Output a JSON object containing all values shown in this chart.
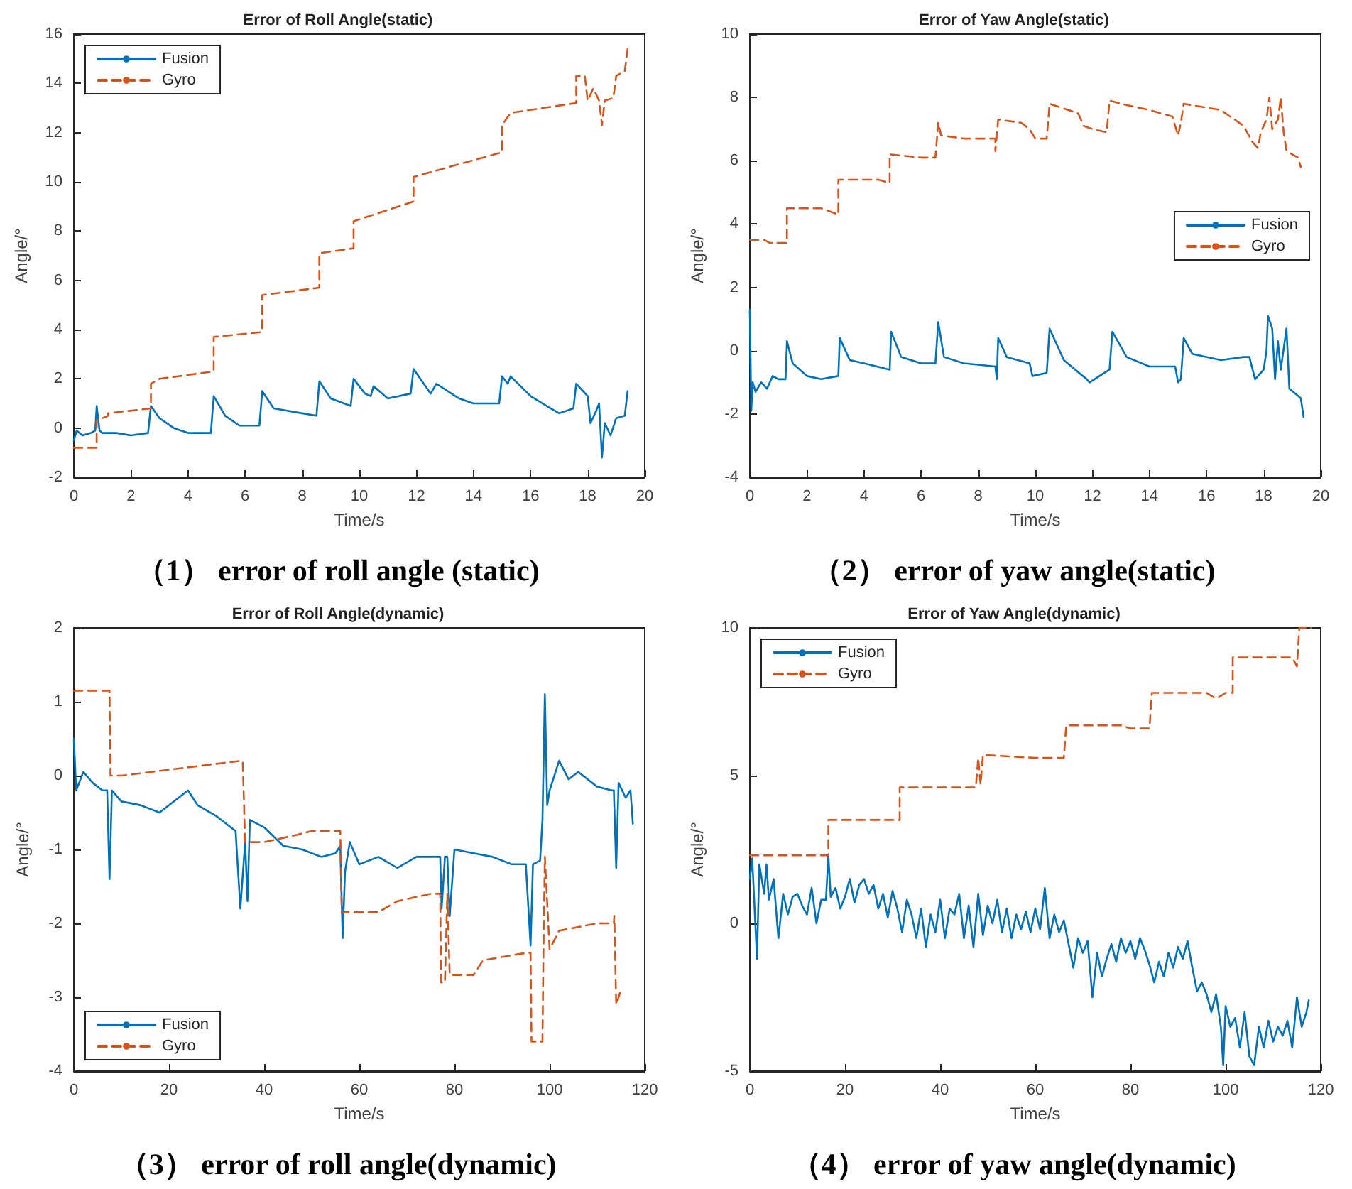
{
  "chart_data": [
    {
      "type": "line",
      "title": "Error of Roll Angle(static)",
      "xlabel": "Time/s",
      "ylabel": "Angle/°",
      "annotations": [
        "（1） error of roll angle (static)"
      ],
      "xlim": [
        0,
        20
      ],
      "xticks": [
        0,
        2,
        4,
        6,
        8,
        10,
        12,
        14,
        16,
        18,
        20
      ],
      "ylim": [
        -2,
        16
      ],
      "yticks": [
        -2,
        0,
        2,
        4,
        6,
        8,
        10,
        12,
        14,
        16
      ],
      "grid": false,
      "legend": "top left",
      "series": [
        {
          "name": "Fusion",
          "color": "#0072bd",
          "line_style": "solid",
          "x": [
            0,
            0.1,
            0.3,
            0.6,
            0.75,
            0.8,
            0.9,
            1,
            1.5,
            2,
            2.6,
            2.7,
            3,
            3.5,
            4,
            4.8,
            4.9,
            5.3,
            5.8,
            6.5,
            6.6,
            7,
            8,
            8.5,
            8.6,
            9,
            9.7,
            9.8,
            10.2,
            10.4,
            10.5,
            11,
            11.8,
            11.9,
            12.5,
            12.7,
            13.5,
            14,
            14.9,
            15,
            15.2,
            15.3,
            16,
            16.7,
            17,
            17.5,
            17.6,
            18,
            18.1,
            18.3,
            18.4,
            18.5,
            18.6,
            18.8,
            19,
            19.3,
            19.4
          ],
          "values": [
            -0.5,
            -0.1,
            -0.3,
            -0.2,
            -0.1,
            0.9,
            -0.1,
            -0.2,
            -0.2,
            -0.3,
            -0.2,
            0.9,
            0.4,
            0,
            -0.2,
            -0.2,
            1.3,
            0.5,
            0.1,
            0.1,
            1.5,
            0.8,
            0.6,
            0.5,
            1.9,
            1.2,
            0.9,
            2.0,
            1.4,
            1.3,
            1.7,
            1.2,
            1.4,
            2.4,
            1.4,
            1.8,
            1.2,
            1.0,
            1.0,
            2.1,
            1.8,
            2.1,
            1.3,
            0.8,
            0.6,
            0.8,
            1.8,
            1.3,
            0.2,
            0.7,
            1.0,
            -1.2,
            0.2,
            -0.3,
            0.4,
            0.5,
            1.5
          ]
        },
        {
          "name": "Gyro",
          "color": "#d95319",
          "line_style": "dashed",
          "x": [
            0,
            0.8,
            0.8,
            1.2,
            1.2,
            2.7,
            2.7,
            3,
            4.9,
            4.9,
            6.6,
            6.6,
            8.6,
            8.6,
            9.8,
            9.8,
            11.9,
            11.9,
            15,
            15,
            15.3,
            17.6,
            17.6,
            17.9,
            18,
            18.2,
            18.4,
            18.5,
            18.6,
            18.9,
            19,
            19.3,
            19.4
          ],
          "values": [
            -0.8,
            -0.8,
            0.3,
            0.5,
            0.6,
            0.8,
            1.8,
            2.0,
            2.3,
            3.7,
            3.9,
            5.4,
            5.7,
            7.1,
            7.3,
            8.4,
            9.2,
            10.2,
            11.2,
            12.3,
            12.8,
            13.2,
            14.3,
            14.3,
            13.3,
            13.8,
            13.3,
            12.3,
            13.3,
            13.4,
            14.3,
            14.5,
            15.4
          ]
        }
      ]
    },
    {
      "type": "line",
      "title": "Error of Yaw Angle(static)",
      "xlabel": "Time/s",
      "ylabel": "Angle/°",
      "annotations": [
        "（2） error of yaw angle(static)"
      ],
      "xlim": [
        0,
        20
      ],
      "xticks": [
        0,
        2,
        4,
        6,
        8,
        10,
        12,
        14,
        16,
        18,
        20
      ],
      "ylim": [
        -4,
        10
      ],
      "yticks": [
        -4,
        -2,
        0,
        2,
        4,
        6,
        8,
        10
      ],
      "grid": false,
      "legend": "right",
      "series": [
        {
          "name": "Fusion",
          "color": "#0072bd",
          "line_style": "solid",
          "x": [
            0,
            0.05,
            0.1,
            0.2,
            0.4,
            0.6,
            0.8,
            1,
            1.25,
            1.3,
            1.5,
            2,
            2.5,
            3.1,
            3.15,
            3.5,
            4,
            4.9,
            4.95,
            5.3,
            6,
            6.5,
            6.6,
            6.8,
            7.5,
            8.6,
            8.65,
            8.7,
            9,
            9.8,
            9.9,
            10.4,
            10.5,
            11,
            11.8,
            11.9,
            12.6,
            12.7,
            13.2,
            14,
            14.9,
            15,
            15.1,
            15.2,
            15.5,
            16.5,
            17.3,
            17.5,
            17.7,
            18,
            18.1,
            18.15,
            18.3,
            18.4,
            18.5,
            18.6,
            18.8,
            18.9,
            19.3,
            19.4
          ],
          "values": [
            1.3,
            -1.9,
            -1.0,
            -1.3,
            -1.0,
            -1.2,
            -0.8,
            -0.9,
            -0.9,
            0.3,
            -0.4,
            -0.8,
            -0.9,
            -0.8,
            0.4,
            -0.3,
            -0.4,
            -0.6,
            0.6,
            -0.2,
            -0.4,
            -0.4,
            0.9,
            -0.2,
            -0.4,
            -0.5,
            -0.9,
            0.4,
            -0.2,
            -0.4,
            -0.8,
            -0.7,
            0.7,
            -0.3,
            -0.9,
            -1.0,
            -0.6,
            0.6,
            -0.2,
            -0.5,
            -0.5,
            -1.0,
            -0.9,
            0.4,
            -0.1,
            -0.3,
            -0.2,
            -0.2,
            -0.9,
            -0.6,
            0.0,
            1.1,
            0.7,
            -0.9,
            0.3,
            -0.6,
            0.7,
            -1.2,
            -1.5,
            -2.1
          ]
        },
        {
          "name": "Gyro",
          "color": "#d95319",
          "line_style": "dashed",
          "x": [
            0,
            0.5,
            0.7,
            1.3,
            1.3,
            2.5,
            3.1,
            3.1,
            4.5,
            4.9,
            4.9,
            6,
            6.5,
            6.6,
            6.7,
            7.5,
            8.6,
            8.6,
            8.7,
            9.5,
            9.8,
            10,
            10.4,
            10.5,
            11.5,
            11.7,
            12,
            12.5,
            12.6,
            13,
            14,
            14.8,
            15,
            15.1,
            15.2,
            16.5,
            17.3,
            17.6,
            17.8,
            17.9,
            18.1,
            18.2,
            18.3,
            18.5,
            18.6,
            18.7,
            18.8,
            19.2,
            19.3
          ],
          "values": [
            3.5,
            3.5,
            3.4,
            3.4,
            4.5,
            4.5,
            4.3,
            5.4,
            5.4,
            5.3,
            6.2,
            6.1,
            6.1,
            7.2,
            6.8,
            6.7,
            6.7,
            6.3,
            7.3,
            7.2,
            7.0,
            6.7,
            6.7,
            7.8,
            7.5,
            7.1,
            7.0,
            6.9,
            7.9,
            7.8,
            7.6,
            7.4,
            6.8,
            7.2,
            7.8,
            7.6,
            7.1,
            6.6,
            6.4,
            6.9,
            7.3,
            8.0,
            7.0,
            7.3,
            8.0,
            6.9,
            6.3,
            6.1,
            5.8
          ]
        }
      ]
    },
    {
      "type": "line",
      "title": "Error of Roll Angle(dynamic)",
      "xlabel": "Time/s",
      "ylabel": "Angle/°",
      "annotations": [
        "（3） error of roll angle(dynamic)"
      ],
      "xlim": [
        0,
        120
      ],
      "xticks": [
        0,
        20,
        40,
        60,
        80,
        100,
        120
      ],
      "ylim": [
        -4,
        2
      ],
      "yticks": [
        -4,
        -3,
        -2,
        -1,
        0,
        1,
        2
      ],
      "grid": false,
      "legend": "bottom left",
      "series": [
        {
          "name": "Fusion",
          "color": "#0072bd",
          "line_style": "solid",
          "x": [
            0,
            0.5,
            2,
            4,
            6,
            7,
            7.5,
            8,
            10,
            14,
            18,
            22,
            24,
            26,
            30,
            34,
            35,
            36,
            36.5,
            37,
            40,
            44,
            48,
            52,
            55,
            56,
            56.5,
            57,
            58,
            60,
            64,
            68,
            72,
            76,
            77,
            77.3,
            78,
            78.5,
            79,
            80,
            84,
            88,
            92,
            95,
            96,
            96.5,
            98,
            98.5,
            99,
            99.5,
            100,
            102,
            104,
            106,
            110,
            113,
            113.5,
            114,
            114.5,
            116,
            117,
            117.5
          ],
          "values": [
            0.5,
            -0.2,
            0.05,
            -0.1,
            -0.2,
            -0.2,
            -1.4,
            -0.2,
            -0.35,
            -0.4,
            -0.5,
            -0.3,
            -0.2,
            -0.4,
            -0.55,
            -0.75,
            -1.8,
            -0.9,
            -1.7,
            -0.6,
            -0.7,
            -0.95,
            -1.0,
            -1.1,
            -1.05,
            -0.95,
            -2.2,
            -1.3,
            -0.9,
            -1.2,
            -1.1,
            -1.25,
            -1.1,
            -1.1,
            -1.1,
            -1.8,
            -1.1,
            -1.1,
            -1.9,
            -1.0,
            -1.05,
            -1.1,
            -1.2,
            -1.2,
            -2.3,
            -1.2,
            -1.15,
            -0.6,
            1.1,
            -0.4,
            -0.2,
            0.2,
            -0.05,
            0.05,
            -0.15,
            -0.2,
            -0.2,
            -1.25,
            -0.1,
            -0.3,
            -0.2,
            -0.65
          ]
        },
        {
          "name": "Gyro",
          "color": "#d95319",
          "line_style": "dashed",
          "x": [
            0,
            7.5,
            7.7,
            10,
            35,
            35.5,
            36,
            40,
            47,
            50,
            56,
            56.3,
            64,
            68,
            75,
            77,
            77.2,
            78,
            78.5,
            79,
            84,
            86,
            95,
            96,
            96.2,
            98.5,
            98.7,
            99,
            100,
            102,
            110,
            113.5,
            113.6,
            114,
            115
          ],
          "values": [
            1.15,
            1.15,
            0.0,
            0.0,
            0.2,
            0.2,
            -0.9,
            -0.9,
            -0.8,
            -0.75,
            -0.75,
            -1.85,
            -1.85,
            -1.7,
            -1.6,
            -1.6,
            -2.8,
            -2.8,
            -1.6,
            -2.7,
            -2.7,
            -2.5,
            -2.4,
            -2.4,
            -3.6,
            -3.6,
            -2.4,
            -1.1,
            -2.35,
            -2.1,
            -2.0,
            -2.0,
            -1.9,
            -3.1,
            -2.9
          ]
        }
      ]
    },
    {
      "type": "line",
      "title": "Error of Yaw Angle(dynamic)",
      "xlabel": "Time/s",
      "ylabel": "Angle/°",
      "annotations": [
        "（4） error of yaw angle(dynamic)"
      ],
      "xlim": [
        0,
        120
      ],
      "xticks": [
        0,
        20,
        40,
        60,
        80,
        100,
        120
      ],
      "ylim": [
        -5,
        10
      ],
      "yticks": [
        -5,
        0,
        5,
        10
      ],
      "grid": false,
      "legend": "top left",
      "series": [
        {
          "name": "Fusion",
          "color": "#0072bd",
          "line_style": "solid",
          "x": [
            0,
            0.5,
            1,
            1.5,
            2,
            3,
            3.5,
            4,
            5,
            6,
            7,
            8,
            9,
            10,
            11,
            12,
            13,
            14,
            15,
            16,
            16.5,
            17,
            18,
            19,
            20,
            21,
            22,
            23,
            24,
            25,
            26,
            27,
            28,
            29,
            30,
            31,
            32,
            33,
            34,
            35,
            36,
            37,
            38,
            39,
            40,
            41,
            42,
            43,
            44,
            45,
            46,
            47,
            48,
            49,
            50,
            51,
            52,
            53,
            54,
            55,
            56,
            57,
            58,
            59,
            60,
            61,
            62,
            63,
            64,
            65,
            66,
            67,
            68,
            69,
            70,
            71,
            72,
            73,
            74,
            75,
            76,
            77,
            78,
            79,
            80,
            81,
            82,
            83,
            84,
            85,
            86,
            87,
            88,
            89,
            90,
            91,
            92,
            93,
            94,
            95,
            96,
            97,
            98,
            99,
            99.5,
            100,
            101,
            102,
            103,
            104,
            105,
            106,
            107,
            108,
            109,
            110,
            111,
            112,
            113,
            114,
            115,
            116,
            117,
            117.5
          ],
          "values": [
            1.5,
            2.2,
            0.5,
            -1.2,
            2.0,
            1.0,
            2.0,
            0.8,
            1.5,
            -0.5,
            1.0,
            0.3,
            0.9,
            1.0,
            0.6,
            0.3,
            1.2,
            0.0,
            0.8,
            0.8,
            2.3,
            0.9,
            1.2,
            0.5,
            0.9,
            1.5,
            0.7,
            1.3,
            1.5,
            1.0,
            1.3,
            0.5,
            1.0,
            0.2,
            1.1,
            0.5,
            -0.3,
            0.8,
            0.3,
            -0.5,
            0.5,
            -0.8,
            0.3,
            -0.3,
            0.8,
            -0.5,
            0.5,
            0.3,
            1.0,
            -0.5,
            0.6,
            -0.8,
            1.0,
            -0.4,
            0.6,
            0.0,
            0.8,
            -0.3,
            0.5,
            -0.5,
            0.3,
            -0.2,
            0.4,
            -0.3,
            0.5,
            -0.2,
            1.2,
            -0.5,
            0.3,
            -0.3,
            0.1,
            -0.7,
            -1.5,
            -0.5,
            -1.0,
            -0.6,
            -2.5,
            -1.0,
            -1.8,
            -1.2,
            -0.7,
            -1.3,
            -0.5,
            -1.0,
            -0.6,
            -1.2,
            -0.5,
            -0.9,
            -1.4,
            -2.0,
            -1.3,
            -1.8,
            -1.0,
            -1.5,
            -0.8,
            -1.2,
            -0.6,
            -1.5,
            -2.3,
            -2.0,
            -2.4,
            -3.0,
            -2.4,
            -3.5,
            -4.8,
            -2.8,
            -3.5,
            -3.2,
            -4.2,
            -3.0,
            -4.5,
            -4.8,
            -3.5,
            -4.2,
            -3.3,
            -4.0,
            -3.5,
            -3.8,
            -3.3,
            -4.2,
            -2.5,
            -3.5,
            -3.0,
            -2.6
          ]
        },
        {
          "name": "Gyro",
          "color": "#d95319",
          "line_style": "dashed",
          "x": [
            0,
            16.5,
            16.5,
            31.5,
            31.5,
            47.5,
            48,
            48.5,
            49,
            60,
            66,
            66.5,
            78,
            80,
            84,
            84.5,
            96,
            98,
            100,
            101.5,
            101.5,
            114,
            115,
            115.5,
            118
          ],
          "values": [
            2.3,
            2.3,
            3.5,
            3.5,
            4.6,
            4.6,
            5.6,
            4.7,
            5.7,
            5.6,
            5.6,
            6.7,
            6.7,
            6.6,
            6.6,
            7.8,
            7.8,
            7.6,
            7.8,
            7.8,
            9.0,
            9.0,
            8.7,
            10.0,
            10.0
          ]
        }
      ]
    }
  ]
}
